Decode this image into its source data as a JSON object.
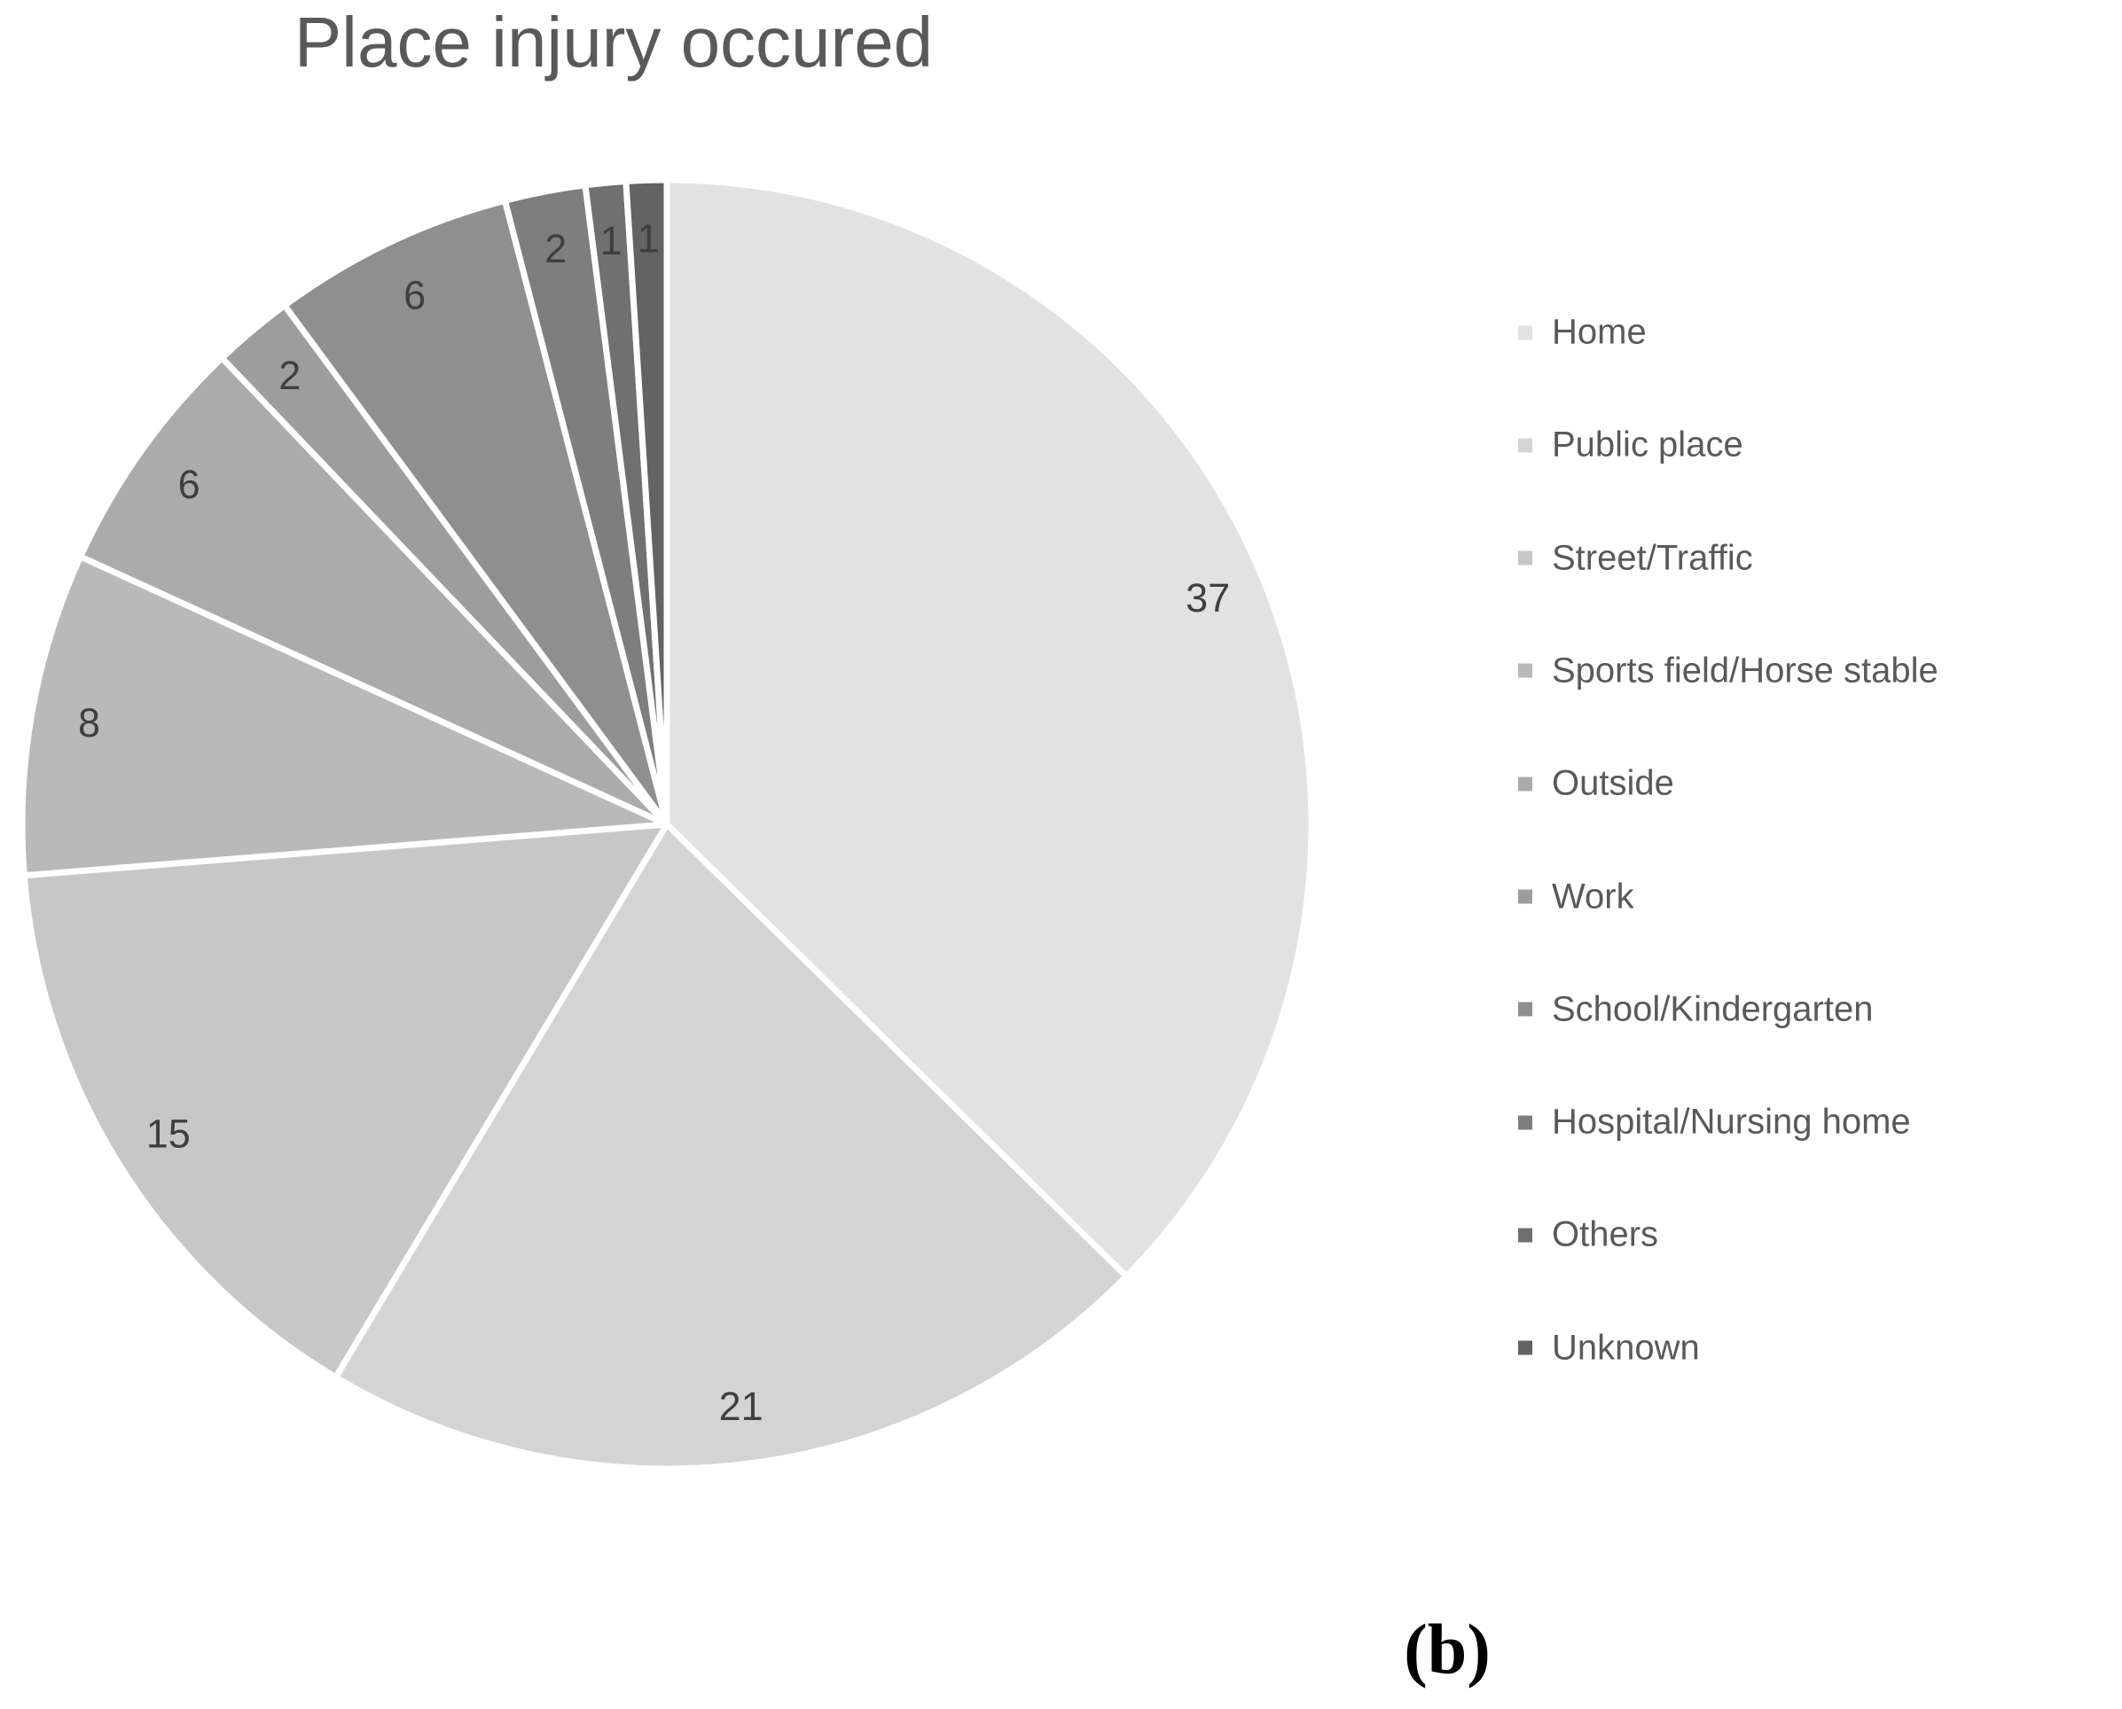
{
  "page": {
    "background": "#ffffff",
    "caption": "(b)"
  },
  "chart_data": {
    "type": "pie",
    "title": "Place injury occured",
    "categories": [
      "Home",
      "Public place",
      "Street/Traffic",
      "Sports field/Horse stable",
      "Outside",
      "Work",
      "School/Kindergarten",
      "Hospital/Nursing home",
      "Others",
      "Unknown"
    ],
    "values": [
      37,
      21,
      15,
      8,
      6,
      2,
      6,
      2,
      1,
      1
    ],
    "data_labels": [
      "37",
      "21",
      "15",
      "8",
      "6",
      "2",
      "6",
      "2",
      "1",
      "1"
    ],
    "total": 99,
    "colors": [
      "#e2e2e2",
      "#d4d4d4",
      "#c7c7c7",
      "#b9b9b9",
      "#ababab",
      "#9d9d9d",
      "#8f8f8f",
      "#7e7e7e",
      "#707070",
      "#636363"
    ],
    "start_angle_deg": 0,
    "direction": "clockwise",
    "slice_border_color": "#ffffff",
    "label_color": "#3f3f3f",
    "title_color": "#595959",
    "legend_position": "right",
    "legend_text_color": "#595959",
    "grid": false
  }
}
